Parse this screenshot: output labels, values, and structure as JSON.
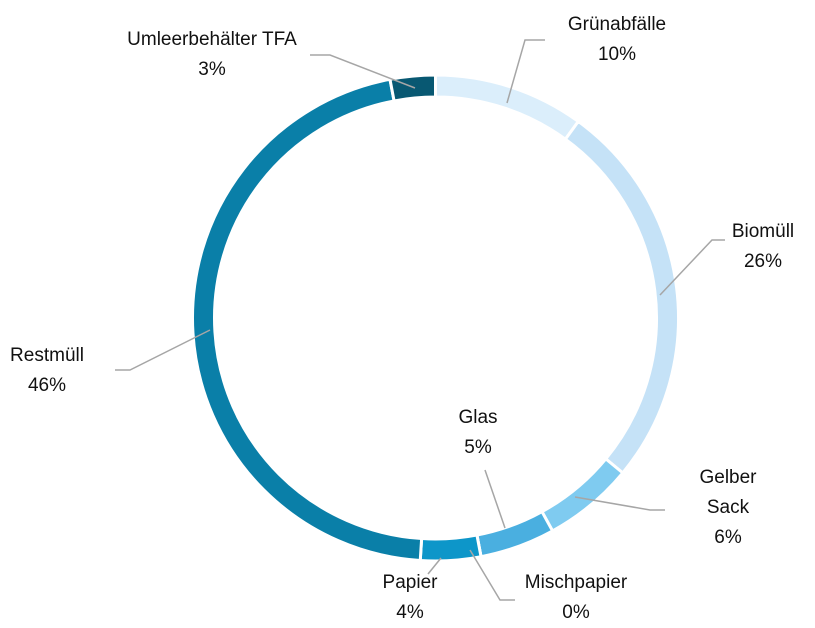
{
  "chart_data": {
    "type": "donut",
    "categories": [
      "Grünabfälle",
      "Biomüll",
      "Gelber Sack",
      "Glas",
      "Mischpapier",
      "Papier",
      "Restmüll",
      "Umleerbehälter TFA"
    ],
    "values": [
      10,
      26,
      6,
      5,
      0,
      4,
      46,
      3
    ],
    "value_labels": [
      "10%",
      "26%",
      "6%",
      "5%",
      "0%",
      "4%",
      "46%",
      "3%"
    ],
    "colors": [
      "#dbeefb",
      "#c5e2f7",
      "#7fcbf0",
      "#4aafe0",
      "#2a9fd6",
      "#0d96c9",
      "#0a7fa8",
      "#085872"
    ]
  }
}
